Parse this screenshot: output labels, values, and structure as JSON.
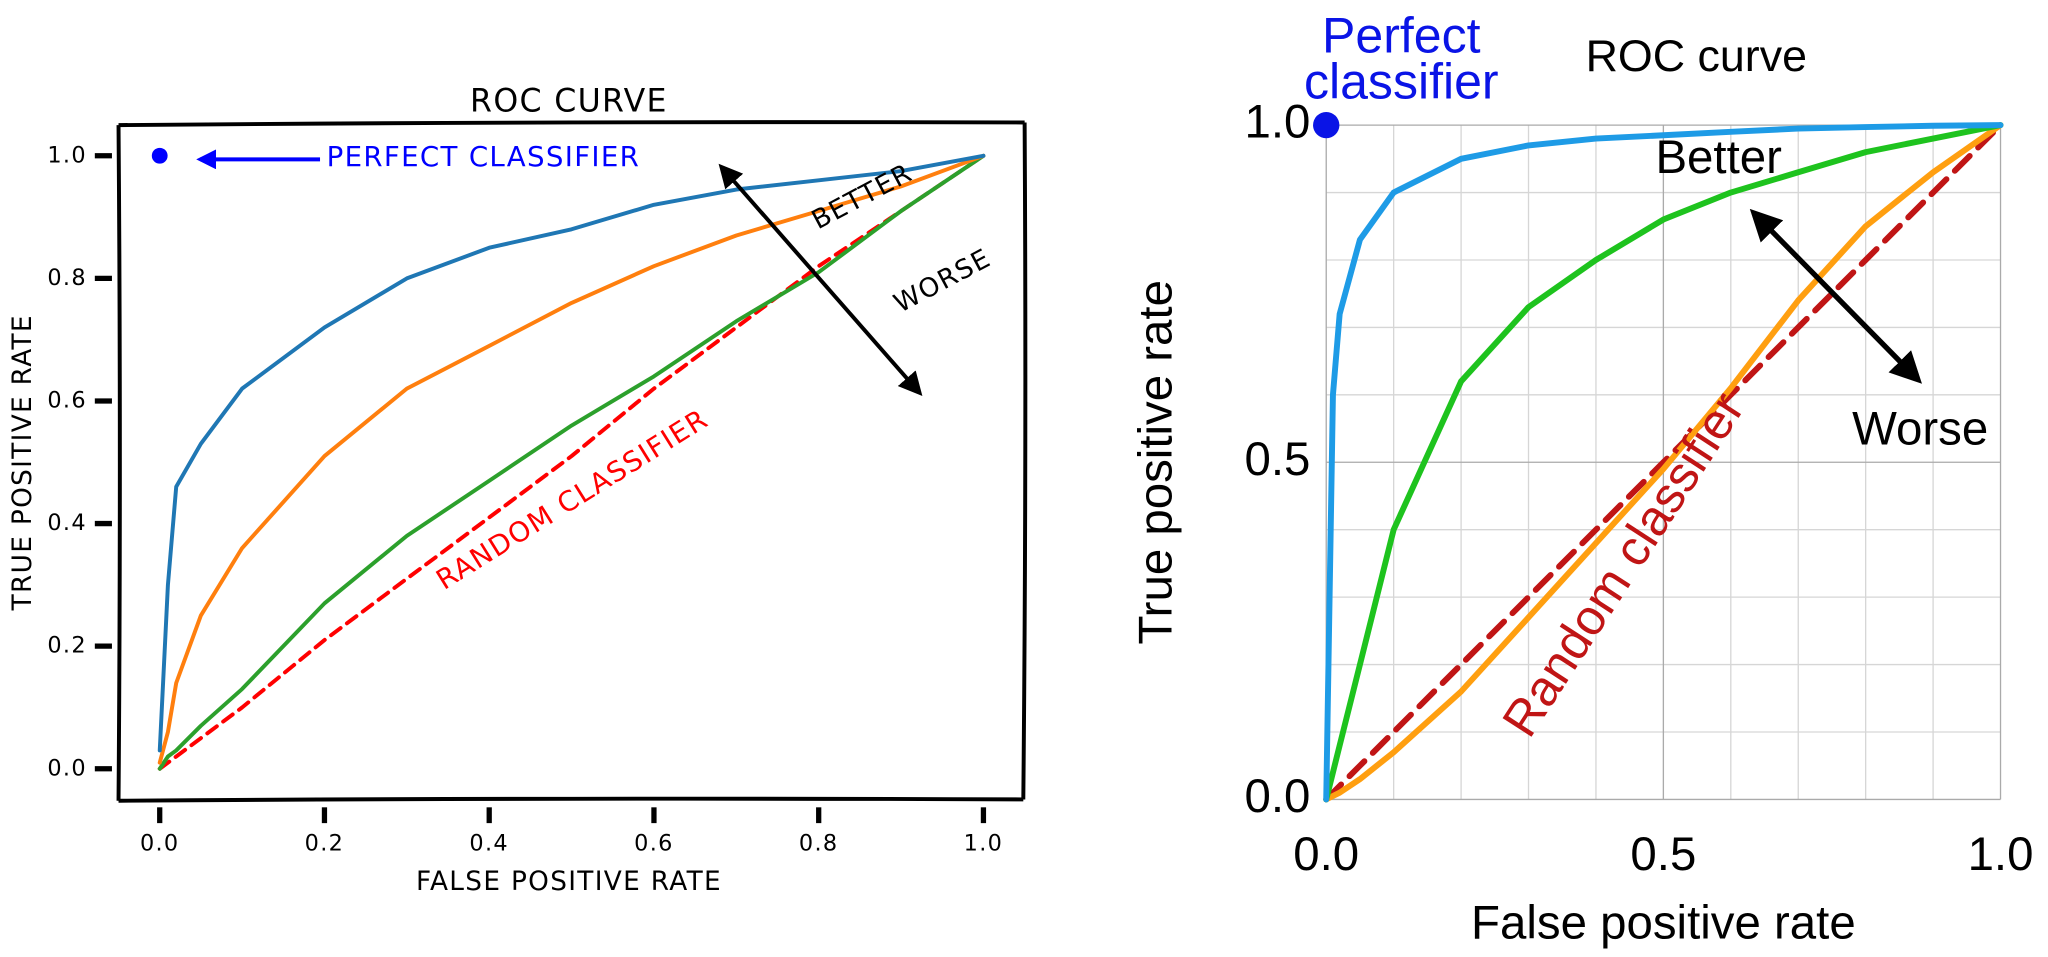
{
  "chart_data": [
    {
      "type": "line",
      "style": "xkcd",
      "title": "ROC CURVE",
      "xlabel": "FALSE POSITIVE RATE",
      "ylabel": "TRUE POSITIVE RATE",
      "x": [
        0,
        0.01,
        0.02,
        0.05,
        0.1,
        0.2,
        0.3,
        0.4,
        0.5,
        0.6,
        0.7,
        0.8,
        0.9,
        1.0
      ],
      "series": [
        {
          "color": "#1f77b4",
          "values": [
            0.03,
            0.3,
            0.46,
            0.53,
            0.62,
            0.72,
            0.8,
            0.85,
            0.88,
            0.92,
            0.945,
            0.96,
            0.975,
            1.0
          ]
        },
        {
          "color": "#ff7f0e",
          "values": [
            0.01,
            0.06,
            0.14,
            0.25,
            0.36,
            0.51,
            0.62,
            0.69,
            0.76,
            0.82,
            0.87,
            0.91,
            0.95,
            1.0
          ]
        },
        {
          "color": "#2ca02c",
          "values": [
            0,
            0.02,
            0.03,
            0.07,
            0.13,
            0.27,
            0.38,
            0.47,
            0.56,
            0.64,
            0.73,
            0.81,
            0.91,
            1.0
          ]
        },
        {
          "color": "#ff0000",
          "dashed": true,
          "values": [
            0,
            0.01,
            0.02,
            0.05,
            0.1,
            0.21,
            0.31,
            0.41,
            0.51,
            0.62,
            0.72,
            0.82,
            0.91,
            1.0
          ]
        }
      ],
      "points": [
        {
          "x": 0,
          "y": 1,
          "color": "#0000ff"
        }
      ],
      "annotations": [
        "PERFECT CLASSIFIER",
        "BETTER",
        "WORSE",
        "RANDOM CLASSIFIER"
      ],
      "xlim": [
        -0.05,
        1.05
      ],
      "ylim": [
        -0.05,
        1.05
      ],
      "xticks": [
        {
          "value": 0,
          "label": "0.0"
        },
        0.2,
        0.4,
        0.6,
        0.8,
        {
          "value": 1,
          "label": "1.0"
        }
      ],
      "yticks": [
        {
          "value": 0,
          "label": "0.0"
        },
        0.2,
        0.4,
        0.6,
        0.8,
        {
          "value": 1,
          "label": "1.0"
        }
      ],
      "grid": false
    },
    {
      "type": "line",
      "style": "plain",
      "title": "ROC curve",
      "xlabel": "False positive rate",
      "ylabel": "True positive rate",
      "x": [
        0,
        0.01,
        0.02,
        0.05,
        0.1,
        0.2,
        0.3,
        0.4,
        0.5,
        0.6,
        0.7,
        0.8,
        0.9,
        1.0
      ],
      "series": [
        {
          "color": "#1e9be6",
          "values": [
            0,
            0.6,
            0.72,
            0.83,
            0.9,
            0.95,
            0.97,
            0.98,
            0.985,
            0.99,
            0.995,
            0.997,
            0.999,
            1.0
          ]
        },
        {
          "color": "#1ec31e",
          "values": [
            0,
            0.04,
            0.08,
            0.2,
            0.4,
            0.62,
            0.73,
            0.8,
            0.86,
            0.9,
            0.93,
            0.96,
            0.98,
            1.0
          ]
        },
        {
          "color": "#ff9f10",
          "values": [
            0,
            0.005,
            0.01,
            0.03,
            0.07,
            0.16,
            0.27,
            0.38,
            0.49,
            0.61,
            0.74,
            0.85,
            0.93,
            1.0
          ]
        },
        {
          "color": "#c01515",
          "dashed": true,
          "values": [
            0,
            0.01,
            0.02,
            0.05,
            0.1,
            0.2,
            0.3,
            0.4,
            0.5,
            0.6,
            0.7,
            0.8,
            0.9,
            1.0
          ]
        }
      ],
      "points": [
        {
          "x": 0,
          "y": 1,
          "color": "#0a14e6"
        }
      ],
      "annotations": [
        "Perfect classifier",
        "Better",
        "Worse",
        "Random classifier"
      ],
      "xlim": [
        0,
        1
      ],
      "ylim": [
        0,
        1
      ],
      "xticks": [
        {
          "value": 0,
          "label": "0.0"
        },
        0.5,
        {
          "value": 1,
          "label": "1.0"
        }
      ],
      "yticks": [
        {
          "value": 0,
          "label": "0.0"
        },
        0.5,
        {
          "value": 1,
          "label": "1.0"
        }
      ],
      "grid": true,
      "minor_grid": [
        0.1,
        0.2,
        0.3,
        0.4,
        0.6,
        0.7,
        0.8,
        0.9
      ]
    }
  ]
}
